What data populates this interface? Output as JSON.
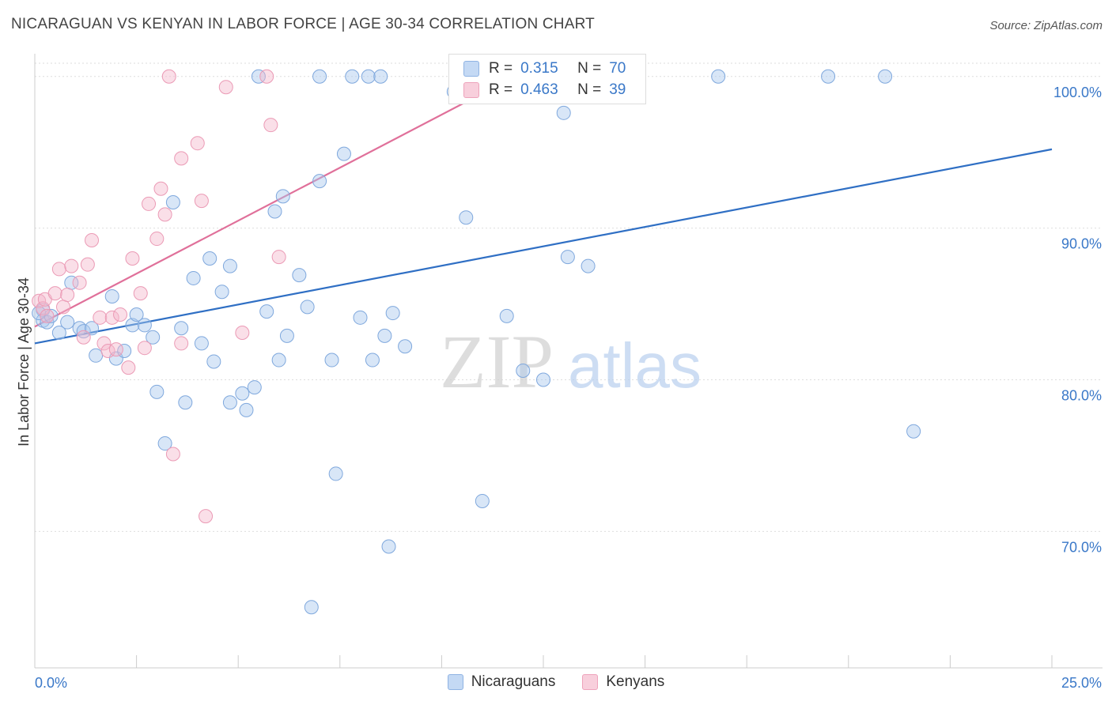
{
  "title": "NICARAGUAN VS KENYAN IN LABOR FORCE | AGE 30-34 CORRELATION CHART",
  "source": "Source: ZipAtlas.com",
  "watermark": {
    "zip": "ZIP",
    "atlas": "atlas"
  },
  "legend": {
    "rows": [
      {
        "r_label": "R =",
        "r_value": "0.315",
        "n_label": "N =",
        "n_value": "70"
      },
      {
        "r_label": "R =",
        "r_value": "0.463",
        "n_label": "N =",
        "n_value": "39"
      }
    ]
  },
  "chart_data": {
    "type": "scatter",
    "title": "NICARAGUAN VS KENYAN IN LABOR FORCE | AGE 30-34 CORRELATION CHART",
    "xlabel": "",
    "ylabel": "In Labor Force | Age 30-34",
    "xlim": [
      0,
      25
    ],
    "ylim": [
      61,
      101.5
    ],
    "x_tick_labels": [
      "0.0%",
      "25.0%"
    ],
    "y_ticks": [
      70,
      80,
      90,
      100
    ],
    "y_tick_labels": [
      "70.0%",
      "80.0%",
      "90.0%",
      "100.0%"
    ],
    "colors": {
      "Nicaraguans": "#a9c8ee",
      "Kenyans": "#f4b8cc",
      "Nicaraguans_line": "#2f6fc4",
      "Kenyans_line": "#e0709a"
    },
    "series": [
      {
        "name": "Nicaraguans",
        "trend": {
          "x": [
            0,
            25
          ],
          "y": [
            82.4,
            95.2
          ]
        },
        "points": [
          [
            0.2,
            84.6
          ],
          [
            0.2,
            83.9
          ],
          [
            0.3,
            83.8
          ],
          [
            0.4,
            84.2
          ],
          [
            0.6,
            83.1
          ],
          [
            0.8,
            83.8
          ],
          [
            0.9,
            86.4
          ],
          [
            1.1,
            83.4
          ],
          [
            1.2,
            83.2
          ],
          [
            1.4,
            83.4
          ],
          [
            1.5,
            81.6
          ],
          [
            1.9,
            85.5
          ],
          [
            2.0,
            81.4
          ],
          [
            2.2,
            81.9
          ],
          [
            2.4,
            83.6
          ],
          [
            2.5,
            84.3
          ],
          [
            2.7,
            83.6
          ],
          [
            2.9,
            82.8
          ],
          [
            3.0,
            79.2
          ],
          [
            3.2,
            75.8
          ],
          [
            3.4,
            91.7
          ],
          [
            3.6,
            83.4
          ],
          [
            3.7,
            78.5
          ],
          [
            3.9,
            86.7
          ],
          [
            4.1,
            82.4
          ],
          [
            4.3,
            88.0
          ],
          [
            4.4,
            81.2
          ],
          [
            4.6,
            85.8
          ],
          [
            4.8,
            78.5
          ],
          [
            4.8,
            87.5
          ],
          [
            5.1,
            79.1
          ],
          [
            5.2,
            78.0
          ],
          [
            5.4,
            79.5
          ],
          [
            5.5,
            100.0
          ],
          [
            5.7,
            84.5
          ],
          [
            5.9,
            91.1
          ],
          [
            6.0,
            81.3
          ],
          [
            6.1,
            92.1
          ],
          [
            6.2,
            82.9
          ],
          [
            6.5,
            86.9
          ],
          [
            6.7,
            84.8
          ],
          [
            6.8,
            65.0
          ],
          [
            7.0,
            93.1
          ],
          [
            7.0,
            100.0
          ],
          [
            7.3,
            81.3
          ],
          [
            7.4,
            73.8
          ],
          [
            7.6,
            94.9
          ],
          [
            7.8,
            100.0
          ],
          [
            8.0,
            84.1
          ],
          [
            8.2,
            100.0
          ],
          [
            8.3,
            81.3
          ],
          [
            8.5,
            100.0
          ],
          [
            8.6,
            82.9
          ],
          [
            8.7,
            69.0
          ],
          [
            8.8,
            84.4
          ],
          [
            9.1,
            82.2
          ],
          [
            10.3,
            99.0
          ],
          [
            10.6,
            90.7
          ],
          [
            11.0,
            72.0
          ],
          [
            11.6,
            84.2
          ],
          [
            12.0,
            80.6
          ],
          [
            12.5,
            80.0
          ],
          [
            13.0,
            97.6
          ],
          [
            13.1,
            88.1
          ],
          [
            13.6,
            87.5
          ],
          [
            16.8,
            100.0
          ],
          [
            19.5,
            100.0
          ],
          [
            20.9,
            100.0
          ],
          [
            21.6,
            76.6
          ],
          [
            0.1,
            84.4
          ]
        ]
      },
      {
        "name": "Kenyans",
        "trend": {
          "x": [
            0,
            11.8
          ],
          "y": [
            83.5,
            100.0
          ]
        },
        "points": [
          [
            0.1,
            85.2
          ],
          [
            0.2,
            84.7
          ],
          [
            0.25,
            85.3
          ],
          [
            0.3,
            84.2
          ],
          [
            0.5,
            85.7
          ],
          [
            0.6,
            87.3
          ],
          [
            0.7,
            84.8
          ],
          [
            0.8,
            85.6
          ],
          [
            0.9,
            87.5
          ],
          [
            1.1,
            86.4
          ],
          [
            1.2,
            82.8
          ],
          [
            1.3,
            87.6
          ],
          [
            1.4,
            89.2
          ],
          [
            1.6,
            84.1
          ],
          [
            1.7,
            82.4
          ],
          [
            1.8,
            81.9
          ],
          [
            1.9,
            84.1
          ],
          [
            2.0,
            82.0
          ],
          [
            2.1,
            84.3
          ],
          [
            2.3,
            80.8
          ],
          [
            2.4,
            88.0
          ],
          [
            2.6,
            85.7
          ],
          [
            2.7,
            82.1
          ],
          [
            2.8,
            91.6
          ],
          [
            3.0,
            89.3
          ],
          [
            3.1,
            92.6
          ],
          [
            3.2,
            90.9
          ],
          [
            3.3,
            100.0
          ],
          [
            3.4,
            75.1
          ],
          [
            3.6,
            82.4
          ],
          [
            3.6,
            94.6
          ],
          [
            4.0,
            95.6
          ],
          [
            4.1,
            91.8
          ],
          [
            4.2,
            71.0
          ],
          [
            4.7,
            99.3
          ],
          [
            5.1,
            83.1
          ],
          [
            5.7,
            100.0
          ],
          [
            5.8,
            96.8
          ],
          [
            6.0,
            88.1
          ]
        ]
      }
    ]
  },
  "bottom_legend": [
    "Nicaraguans",
    "Kenyans"
  ]
}
